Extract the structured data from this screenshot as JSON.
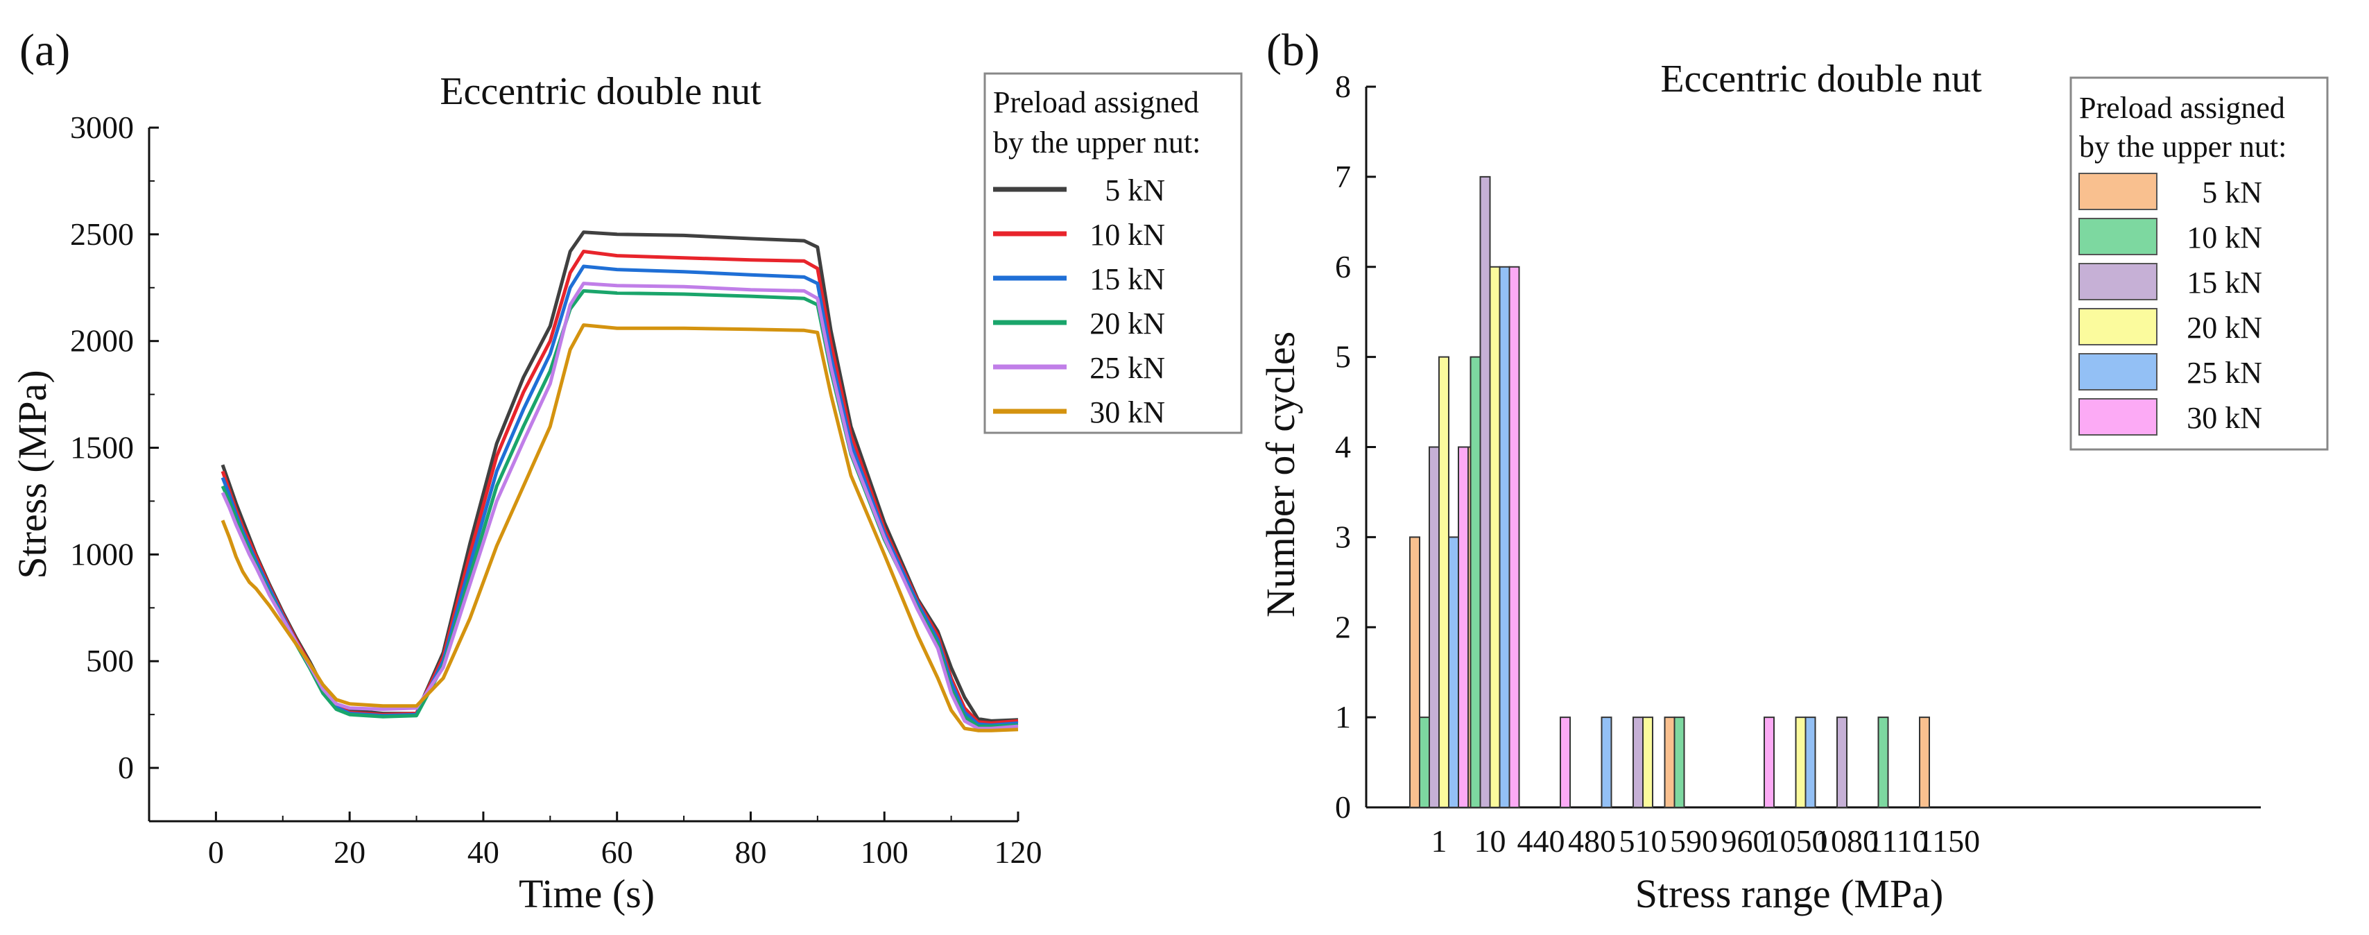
{
  "chart_data": [
    {
      "panel_label": "(a)",
      "type": "line",
      "title": "Eccentric double nut",
      "xlabel": "Time (s)",
      "ylabel": "Stress (MPa)",
      "xlim": [
        -10,
        120
      ],
      "ylim": [
        -250,
        3000
      ],
      "xticks": [
        0,
        20,
        40,
        60,
        80,
        100,
        120
      ],
      "yticks": [
        0,
        500,
        1000,
        1500,
        2000,
        2500,
        3000
      ],
      "legend": {
        "title_line1": "Preload assigned",
        "title_line2": "by the upper nut:",
        "placement": "top-right"
      },
      "x": [
        1,
        2,
        3,
        4,
        5,
        6,
        8,
        10,
        12,
        14,
        16,
        18,
        20,
        25,
        30,
        34,
        38,
        42,
        46,
        50,
        53,
        55,
        60,
        70,
        80,
        88,
        90,
        92,
        95,
        100,
        105,
        108,
        110,
        112,
        114,
        116,
        120
      ],
      "series": [
        {
          "name": "5 kN",
          "color": "#404040",
          "values": [
            1420,
            1330,
            1240,
            1160,
            1080,
            1000,
            860,
            730,
            610,
            500,
            380,
            300,
            270,
            255,
            255,
            540,
            1050,
            1520,
            1830,
            2070,
            2420,
            2510,
            2500,
            2495,
            2480,
            2470,
            2440,
            2050,
            1600,
            1150,
            790,
            640,
            470,
            330,
            230,
            220,
            225
          ]
        },
        {
          "name": "10 kN",
          "color": "#e8242b",
          "values": [
            1390,
            1300,
            1210,
            1130,
            1060,
            990,
            850,
            720,
            600,
            490,
            370,
            290,
            260,
            250,
            255,
            520,
            1000,
            1460,
            1760,
            2000,
            2320,
            2420,
            2400,
            2390,
            2380,
            2375,
            2340,
            1990,
            1560,
            1120,
            780,
            620,
            420,
            280,
            215,
            210,
            220
          ]
        },
        {
          "name": "15 kN",
          "color": "#1f6fd6",
          "values": [
            1360,
            1280,
            1190,
            1110,
            1040,
            970,
            840,
            710,
            590,
            480,
            360,
            285,
            255,
            245,
            250,
            500,
            950,
            1390,
            1680,
            1940,
            2250,
            2350,
            2335,
            2325,
            2310,
            2300,
            2270,
            1930,
            1520,
            1100,
            770,
            600,
            400,
            260,
            205,
            200,
            210
          ]
        },
        {
          "name": "20 kN",
          "color": "#1aa56b",
          "values": [
            1320,
            1250,
            1170,
            1090,
            1020,
            950,
            820,
            700,
            580,
            470,
            350,
            275,
            250,
            240,
            245,
            480,
            900,
            1320,
            1600,
            1860,
            2150,
            2235,
            2225,
            2220,
            2210,
            2200,
            2170,
            1860,
            1470,
            1070,
            750,
            580,
            370,
            240,
            195,
            195,
            200
          ]
        },
        {
          "name": "25 kN",
          "color": "#c07ee8",
          "values": [
            1290,
            1220,
            1140,
            1070,
            1000,
            940,
            810,
            700,
            590,
            480,
            370,
            300,
            280,
            275,
            280,
            470,
            860,
            1250,
            1530,
            1800,
            2170,
            2270,
            2260,
            2255,
            2240,
            2235,
            2200,
            1880,
            1480,
            1080,
            740,
            560,
            350,
            220,
            185,
            185,
            195
          ]
        },
        {
          "name": "30 kN",
          "color": "#d4930f",
          "values": [
            1160,
            1080,
            990,
            920,
            870,
            840,
            760,
            670,
            580,
            490,
            390,
            320,
            300,
            290,
            290,
            420,
            700,
            1040,
            1320,
            1600,
            1960,
            2075,
            2060,
            2060,
            2055,
            2050,
            2040,
            1750,
            1370,
            1000,
            620,
            420,
            270,
            185,
            175,
            175,
            180
          ]
        }
      ]
    },
    {
      "panel_label": "(b)",
      "type": "bar",
      "title": "Eccentric double nut",
      "xlabel": "Stress range (MPa)",
      "ylabel": "Number of cycles",
      "ylim": [
        0,
        8
      ],
      "yticks": [
        0,
        1,
        2,
        3,
        4,
        5,
        6,
        7,
        8
      ],
      "categories": [
        "1",
        "10",
        "440",
        "480",
        "510",
        "590",
        "960",
        "1050",
        "1080",
        "1110",
        "1150"
      ],
      "legend": {
        "title_line1": "Preload assigned",
        "title_line2": "by the upper nut:",
        "placement": "top-right"
      },
      "series": [
        {
          "name": "5 kN",
          "color": "#f9c08f",
          "values": [
            3,
            4,
            0,
            0,
            0,
            1,
            0,
            0,
            0,
            0,
            1
          ]
        },
        {
          "name": "10 kN",
          "color": "#7dd8a0",
          "values": [
            1,
            5,
            0,
            0,
            0,
            1,
            0,
            0,
            0,
            1,
            0
          ]
        },
        {
          "name": "15 kN",
          "color": "#c6b0d6",
          "values": [
            4,
            7,
            0,
            0,
            1,
            0,
            0,
            0,
            1,
            0,
            0
          ]
        },
        {
          "name": "20 kN",
          "color": "#fbfb9d",
          "values": [
            5,
            6,
            0,
            0,
            1,
            0,
            0,
            1,
            0,
            0,
            0
          ]
        },
        {
          "name": "25 kN",
          "color": "#93c0f5",
          "values": [
            3,
            6,
            0,
            1,
            0,
            0,
            0,
            1,
            0,
            0,
            0
          ]
        },
        {
          "name": "30 kN",
          "color": "#fcaaf5",
          "values": [
            4,
            6,
            1,
            0,
            0,
            0,
            1,
            0,
            0,
            0,
            0
          ]
        }
      ]
    }
  ]
}
